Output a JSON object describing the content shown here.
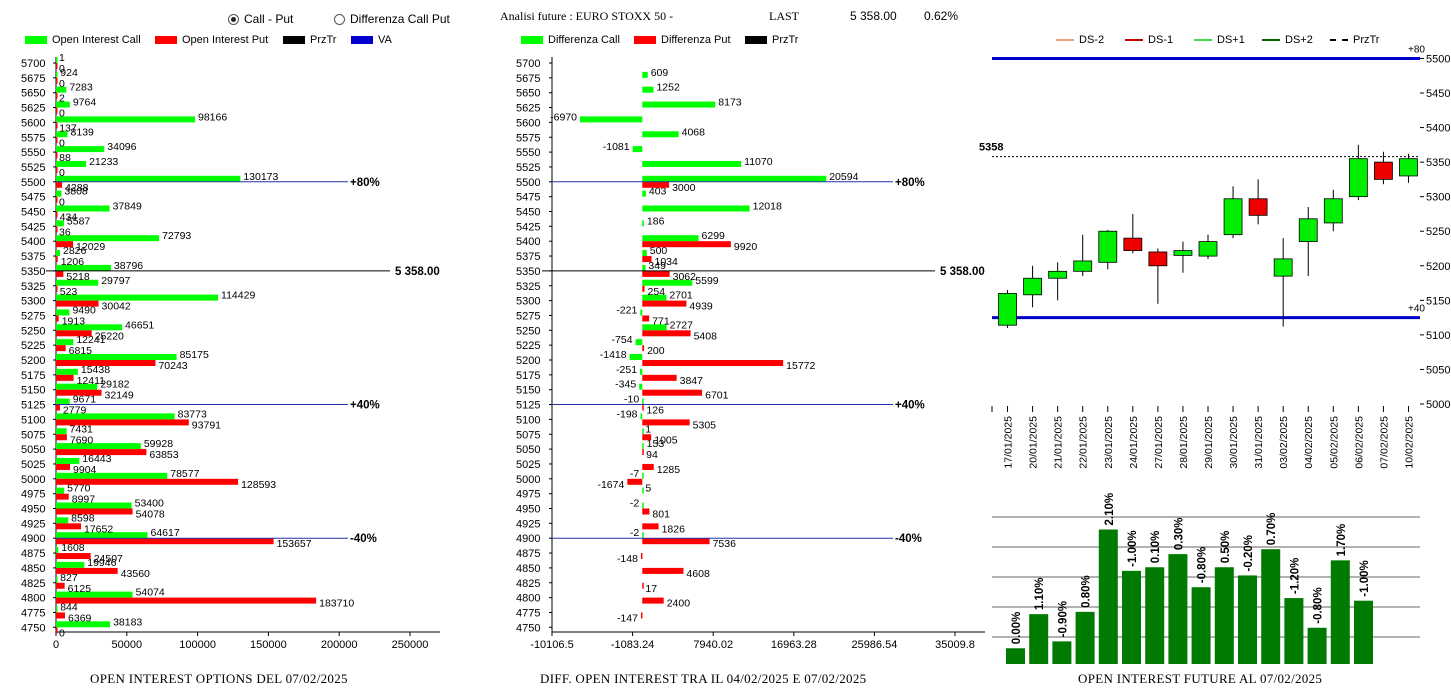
{
  "header": {
    "radio_call_put": "Call - Put",
    "radio_diff": "Differenza Call Put",
    "title": "Analisi future : EURO STOXX 50 -",
    "last_label": "LAST",
    "last_value": "5 358.00",
    "last_change": "0.62%"
  },
  "legend1": {
    "oi_call": "Open Interest Call",
    "oi_put": "Open Interest Put",
    "prztr": "PrzTr",
    "va": "VA"
  },
  "legend2": {
    "diff_call": "Differenza Call",
    "diff_put": "Differenza Put",
    "prztr": "PrzTr"
  },
  "legend3": {
    "ds_m2": "DS-2",
    "ds_m1": "DS-1",
    "ds_p1": "DS+1",
    "ds_p2": "DS+2",
    "prztr": "PrzTr"
  },
  "footers": {
    "chart1": "OPEN INTEREST OPTIONS DEL 07/02/2025",
    "chart2": "DIFF. OPEN INTEREST TRA IL 04/02/2025 E 07/02/2025",
    "chart3": "OPEN INTEREST FUTURE AL 07/02/2025"
  },
  "colors": {
    "call": "#00ff00",
    "put": "#ff0000",
    "va": "#0000cc",
    "bull": "#00ee00",
    "bear": "#ee0000",
    "bars": "#007a00"
  },
  "chart_data": [
    {
      "type": "bar",
      "orientation": "horizontal",
      "strikes": [
        5700,
        5675,
        5650,
        5625,
        5600,
        5575,
        5550,
        5525,
        5500,
        5475,
        5450,
        5425,
        5400,
        5375,
        5350,
        5325,
        5300,
        5275,
        5250,
        5225,
        5200,
        5175,
        5150,
        5125,
        5100,
        5075,
        5050,
        5025,
        5000,
        4975,
        4950,
        4925,
        4900,
        4875,
        4850,
        4825,
        4800,
        4775,
        4750
      ],
      "series": [
        {
          "name": "Open Interest Call",
          "values": [
            1,
            924,
            7283,
            9764,
            98166,
            8139,
            34096,
            21233,
            130173,
            3808,
            37849,
            5587,
            72793,
            2826,
            38796,
            29797,
            114429,
            9490,
            46651,
            12241,
            85175,
            15438,
            29182,
            9671,
            83773,
            7431,
            59928,
            16443,
            78577,
            5770,
            53400,
            8598,
            64617,
            1608,
            19946,
            827,
            54074,
            844,
            38183
          ]
        },
        {
          "name": "Open Interest Put",
          "values": [
            0,
            0,
            2,
            0,
            137,
            0,
            88,
            0,
            4288,
            0,
            434,
            36,
            12029,
            1206,
            5218,
            523,
            30042,
            1913,
            25220,
            6815,
            70243,
            12411,
            32149,
            2779,
            93791,
            7690,
            63853,
            9904,
            128593,
            8997,
            54078,
            17652,
            153657,
            24507,
            43560,
            6125,
            183710,
            6369,
            0
          ]
        }
      ],
      "ref_lines": [
        {
          "strike": 5500,
          "label": "+80%"
        },
        {
          "strike": 5350,
          "label": "5 358.00"
        },
        {
          "strike": 5125,
          "label": "+40%"
        },
        {
          "strike": 4900,
          "label": "-40%"
        }
      ],
      "x_ticks": [
        0,
        50000,
        100000,
        150000,
        200000,
        250000
      ],
      "xlim": [
        0,
        250000
      ]
    },
    {
      "type": "bar",
      "orientation": "horizontal",
      "strikes": [
        5700,
        5675,
        5650,
        5625,
        5600,
        5575,
        5550,
        5525,
        5500,
        5475,
        5450,
        5425,
        5400,
        5375,
        5350,
        5325,
        5300,
        5275,
        5250,
        5225,
        5200,
        5175,
        5150,
        5125,
        5100,
        5075,
        5050,
        5025,
        5000,
        4975,
        4950,
        4925,
        4900,
        4875,
        4850,
        4825,
        4800,
        4775,
        4750
      ],
      "series": [
        {
          "name": "Differenza Call",
          "values": [
            null,
            609,
            1252,
            8173,
            -6970,
            4068,
            -1081,
            11070,
            20594,
            403,
            12018,
            186,
            6299,
            500,
            349,
            5599,
            2701,
            -221,
            2727,
            -754,
            -1418,
            -251,
            -345,
            -10,
            -198,
            1,
            153,
            null,
            -7,
            5,
            -2,
            null,
            -2,
            null,
            null,
            null,
            null,
            null,
            null
          ]
        },
        {
          "name": "Differenza Put",
          "values": [
            null,
            null,
            null,
            null,
            null,
            null,
            null,
            null,
            3000,
            null,
            null,
            null,
            9920,
            1034,
            3062,
            254,
            4939,
            771,
            5408,
            200,
            15772,
            3847,
            6701,
            126,
            5305,
            1005,
            94,
            1285,
            -1674,
            null,
            801,
            1826,
            7536,
            -148,
            4608,
            17,
            2400,
            -147,
            null
          ]
        }
      ],
      "ref_lines": [
        {
          "strike": 5500,
          "label": "+80%"
        },
        {
          "strike": 5350,
          "label": "5 358.00"
        },
        {
          "strike": 5125,
          "label": "+40%"
        },
        {
          "strike": 4900,
          "label": "-40%"
        }
      ],
      "x_ticks": [
        -10106.5,
        -1083.24,
        7940.02,
        16963.28,
        25986.54,
        35009.8
      ],
      "x_tick_labels": [
        "-10106.5",
        "-1083.24",
        "7940.02",
        "16963.28",
        "25986.54",
        "35009.8"
      ],
      "xlim": [
        -10106.5,
        35009.8
      ]
    },
    {
      "type": "candlestick",
      "dates": [
        "17/01/2025",
        "20/01/2025",
        "21/01/2025",
        "22/01/2025",
        "23/01/2025",
        "24/01/2025",
        "27/01/2025",
        "28/01/2025",
        "29/01/2025",
        "30/01/2025",
        "31/01/2025",
        "03/02/2025",
        "04/02/2025",
        "05/02/2025",
        "06/02/2025",
        "07/02/2025",
        "10/02/2025"
      ],
      "ohlc": [
        [
          5114,
          5165,
          5110,
          5160
        ],
        [
          5158,
          5200,
          5140,
          5182
        ],
        [
          5182,
          5205,
          5150,
          5192
        ],
        [
          5192,
          5245,
          5185,
          5207
        ],
        [
          5205,
          5252,
          5195,
          5250
        ],
        [
          5240,
          5275,
          5218,
          5222
        ],
        [
          5220,
          5225,
          5145,
          5200
        ],
        [
          5215,
          5235,
          5190,
          5222
        ],
        [
          5214,
          5245,
          5210,
          5235
        ],
        [
          5245,
          5315,
          5240,
          5297
        ],
        [
          5297,
          5325,
          5260,
          5273
        ],
        [
          5185,
          5240,
          5112,
          5210
        ],
        [
          5235,
          5285,
          5185,
          5268
        ],
        [
          5262,
          5310,
          5250,
          5297
        ],
        [
          5300,
          5375,
          5295,
          5355
        ],
        [
          5350,
          5365,
          5318,
          5325
        ],
        [
          5330,
          5362,
          5320,
          5355
        ]
      ],
      "y_ticks": [
        5000,
        5050,
        5100,
        5150,
        5200,
        5250,
        5300,
        5350,
        5400,
        5450,
        5500
      ],
      "ylim": [
        5000,
        5505
      ],
      "ref_lines": [
        {
          "value": 5500,
          "label": "+80"
        },
        {
          "value": 5125,
          "label": "+40"
        },
        {
          "value": 5358,
          "label": "5358"
        }
      ]
    },
    {
      "type": "bar",
      "labels": [
        "0.00%",
        "1.10%",
        "-0.90%",
        "0.80%",
        "2.10%",
        "-1.00%",
        "0.10%",
        "0.30%",
        "-0.80%",
        "0.50%",
        "-0.20%",
        "0.70%",
        "-1.20%",
        "-0.80%",
        "1.70%",
        "-1.00%"
      ],
      "values": [
        480,
        1520,
        690,
        1590,
        4100,
        2840,
        2950,
        3350,
        2340,
        2950,
        2700,
        3500,
        2010,
        1105,
        3160,
        1930
      ]
    }
  ]
}
